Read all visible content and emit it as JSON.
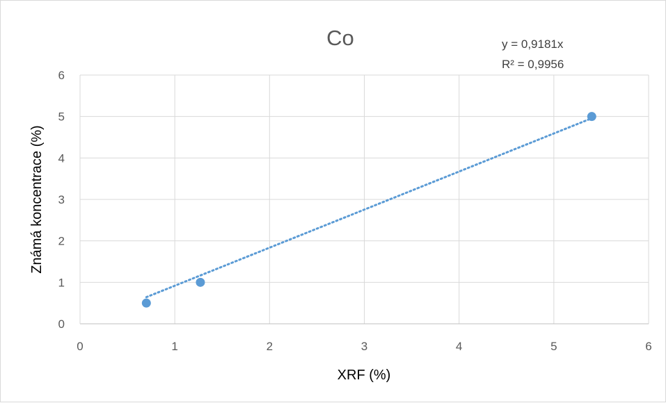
{
  "chart_data": {
    "type": "scatter",
    "title": "Co",
    "xlabel": "XRF (%)",
    "ylabel": "Známá koncentrace (%)",
    "xlim": [
      0,
      6
    ],
    "ylim": [
      0,
      6
    ],
    "x_ticks": [
      "0",
      "1",
      "2",
      "3",
      "4",
      "5",
      "6"
    ],
    "y_ticks": [
      "0",
      "1",
      "2",
      "3",
      "4",
      "5",
      "6"
    ],
    "grid": true,
    "series": [
      {
        "points": [
          {
            "x": 0.7,
            "y": 0.5
          },
          {
            "x": 1.27,
            "y": 1.0
          },
          {
            "x": 5.4,
            "y": 5.0
          }
        ],
        "color": "#5b9bd5"
      }
    ],
    "trendline": {
      "type": "linear-through-origin",
      "slope": 0.9181,
      "x_range": [
        0.7,
        5.4
      ],
      "style": "dotted",
      "color": "#5b9bd5",
      "equation": "y = 0,9181x",
      "r_squared": "R² = 0,9956"
    }
  }
}
